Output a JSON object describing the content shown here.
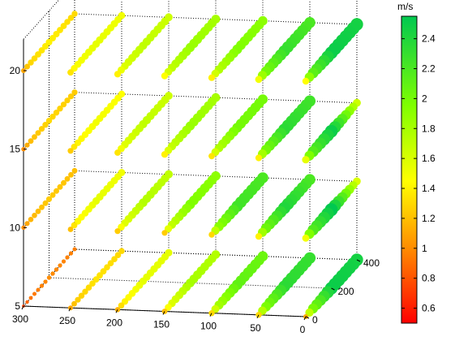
{
  "chart_data": {
    "type": "scatter",
    "title": "",
    "xlabel": "",
    "ylabel": "",
    "zlabel": "",
    "x_axis": {
      "ticks": [
        0,
        50,
        100,
        150,
        200,
        250,
        300
      ],
      "range": [
        0,
        300
      ]
    },
    "y_axis": {
      "ticks": [
        0,
        200,
        400
      ],
      "range": [
        0,
        400
      ]
    },
    "z_axis": {
      "ticks": [
        5,
        10,
        15,
        20
      ],
      "range": [
        5,
        20
      ]
    },
    "colorbar": {
      "unit": "m/s",
      "range": [
        0.5,
        2.55
      ],
      "ticks": [
        "0.6",
        "0.8",
        "1",
        "1.2",
        "1.4",
        "1.6",
        "1.8",
        "2",
        "2.2",
        "2.4"
      ],
      "colormap_stops": [
        {
          "value": 0.5,
          "color": "#ff0000"
        },
        {
          "value": 1.0,
          "color": "#ff8c00"
        },
        {
          "value": 1.45,
          "color": "#ffff00"
        },
        {
          "value": 1.95,
          "color": "#80ff00"
        },
        {
          "value": 2.55,
          "color": "#00c850"
        }
      ]
    },
    "grid": true,
    "points_per_row": 15,
    "rows_x": [
      0,
      50,
      100,
      150,
      200,
      250,
      300
    ],
    "rows_y_range": [
      0,
      400
    ],
    "layers": [
      {
        "z": 5,
        "speeds": [
          [
            1.1,
            2.5,
            2.45
          ],
          [
            1.3,
            2.35,
            2.3
          ],
          [
            1.3,
            2.1,
            2.05
          ],
          [
            1.2,
            1.8,
            1.75
          ],
          [
            1.15,
            1.55,
            1.55
          ],
          [
            1.1,
            1.35,
            1.3
          ],
          [
            0.75,
            1.0,
            0.95
          ]
        ]
      },
      {
        "z": 10,
        "speeds": [
          [
            1.5,
            2.55,
            1.6
          ],
          [
            1.4,
            2.4,
            2.2
          ],
          [
            1.3,
            2.25,
            2.2
          ],
          [
            1.25,
            1.95,
            1.9
          ],
          [
            1.25,
            1.75,
            1.7
          ],
          [
            1.2,
            1.55,
            1.5
          ],
          [
            1.0,
            1.25,
            1.2
          ]
        ]
      },
      {
        "z": 15,
        "speeds": [
          [
            1.55,
            2.5,
            1.65
          ],
          [
            1.4,
            2.35,
            2.25
          ],
          [
            1.35,
            2.0,
            2.0
          ],
          [
            1.4,
            1.85,
            1.8
          ],
          [
            1.35,
            1.7,
            1.65
          ],
          [
            1.25,
            1.5,
            1.45
          ],
          [
            1.0,
            1.3,
            1.25
          ]
        ]
      },
      {
        "z": 20,
        "speeds": [
          [
            1.45,
            2.5,
            2.45
          ],
          [
            1.5,
            2.3,
            2.2
          ],
          [
            1.4,
            1.95,
            1.9
          ],
          [
            1.45,
            1.85,
            1.8
          ],
          [
            1.4,
            1.7,
            1.65
          ],
          [
            1.35,
            1.55,
            1.5
          ],
          [
            1.1,
            1.4,
            1.3
          ]
        ]
      }
    ]
  }
}
